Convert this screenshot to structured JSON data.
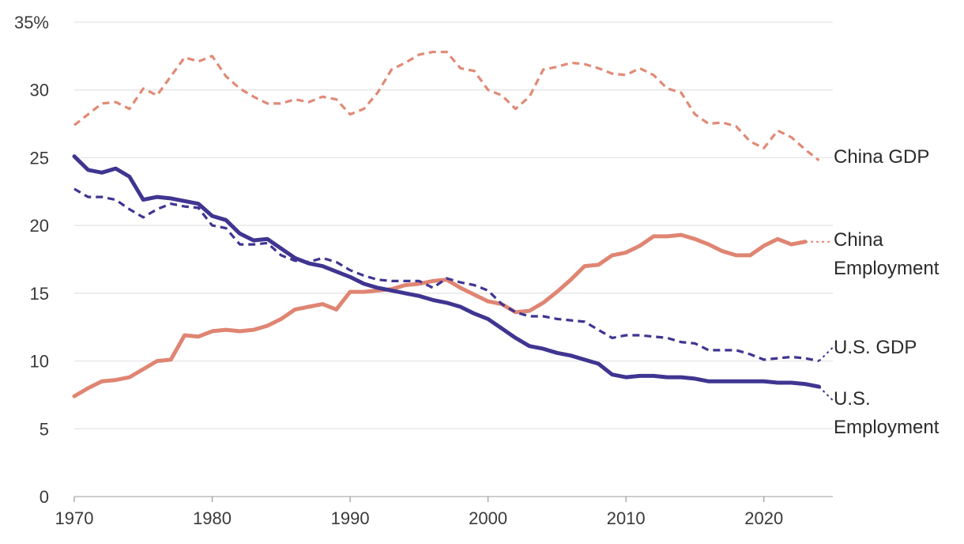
{
  "chart_data": {
    "type": "line",
    "title": "",
    "xlabel": "",
    "ylabel": "",
    "xlim": [
      1970,
      2025
    ],
    "ylim": [
      0,
      35
    ],
    "grid": true,
    "legend": "direct-labels-right",
    "y_ticks": [
      {
        "value": 0,
        "label": "0"
      },
      {
        "value": 5,
        "label": "5"
      },
      {
        "value": 10,
        "label": "10"
      },
      {
        "value": 15,
        "label": "15"
      },
      {
        "value": 20,
        "label": "20"
      },
      {
        "value": 25,
        "label": "25"
      },
      {
        "value": 30,
        "label": "30"
      },
      {
        "value": 35,
        "label": "35%"
      }
    ],
    "x_ticks": [
      {
        "value": 1970,
        "label": "1970"
      },
      {
        "value": 1980,
        "label": "1980"
      },
      {
        "value": 1990,
        "label": "1990"
      },
      {
        "value": 2000,
        "label": "2000"
      },
      {
        "value": 2010,
        "label": "2010"
      },
      {
        "value": 2020,
        "label": "2020"
      }
    ],
    "series": [
      {
        "key": "china-gdp",
        "name": "China GDP",
        "label_lines": [
          "China GDP"
        ],
        "color": "#e08a76",
        "style": "dashed",
        "points": [
          [
            1970,
            27.4
          ],
          [
            1971,
            28.2
          ],
          [
            1972,
            29.0
          ],
          [
            1973,
            29.1
          ],
          [
            1974,
            28.6
          ],
          [
            1975,
            30.1
          ],
          [
            1976,
            29.6
          ],
          [
            1977,
            31.0
          ],
          [
            1978,
            32.4
          ],
          [
            1979,
            32.1
          ],
          [
            1980,
            32.5
          ],
          [
            1981,
            31.0
          ],
          [
            1982,
            30.1
          ],
          [
            1983,
            29.5
          ],
          [
            1984,
            29.0
          ],
          [
            1985,
            29.0
          ],
          [
            1986,
            29.3
          ],
          [
            1987,
            29.1
          ],
          [
            1988,
            29.5
          ],
          [
            1989,
            29.3
          ],
          [
            1990,
            28.2
          ],
          [
            1991,
            28.6
          ],
          [
            1992,
            29.8
          ],
          [
            1993,
            31.5
          ],
          [
            1994,
            32.0
          ],
          [
            1995,
            32.6
          ],
          [
            1996,
            32.8
          ],
          [
            1997,
            32.8
          ],
          [
            1998,
            31.6
          ],
          [
            1999,
            31.4
          ],
          [
            2000,
            30.0
          ],
          [
            2001,
            29.6
          ],
          [
            2002,
            28.6
          ],
          [
            2003,
            29.5
          ],
          [
            2004,
            31.5
          ],
          [
            2005,
            31.7
          ],
          [
            2006,
            32.0
          ],
          [
            2007,
            31.9
          ],
          [
            2008,
            31.6
          ],
          [
            2009,
            31.2
          ],
          [
            2010,
            31.1
          ],
          [
            2011,
            31.6
          ],
          [
            2012,
            31.1
          ],
          [
            2013,
            30.1
          ],
          [
            2014,
            29.8
          ],
          [
            2015,
            28.2
          ],
          [
            2016,
            27.5
          ],
          [
            2017,
            27.6
          ],
          [
            2018,
            27.3
          ],
          [
            2019,
            26.2
          ],
          [
            2020,
            25.7
          ],
          [
            2021,
            27.0
          ],
          [
            2022,
            26.5
          ],
          [
            2023,
            25.6
          ],
          [
            2024,
            24.8
          ]
        ],
        "extension": []
      },
      {
        "key": "china-employment",
        "name": "China Employment",
        "label_lines": [
          "China",
          "Employment"
        ],
        "color": "#df8572",
        "style": "solid",
        "points": [
          [
            1970,
            7.4
          ],
          [
            1971,
            8.0
          ],
          [
            1972,
            8.5
          ],
          [
            1973,
            8.6
          ],
          [
            1974,
            8.8
          ],
          [
            1975,
            9.4
          ],
          [
            1976,
            10.0
          ],
          [
            1977,
            10.1
          ],
          [
            1978,
            11.9
          ],
          [
            1979,
            11.8
          ],
          [
            1980,
            12.2
          ],
          [
            1981,
            12.3
          ],
          [
            1982,
            12.2
          ],
          [
            1983,
            12.3
          ],
          [
            1984,
            12.6
          ],
          [
            1985,
            13.1
          ],
          [
            1986,
            13.8
          ],
          [
            1987,
            14.0
          ],
          [
            1988,
            14.2
          ],
          [
            1989,
            13.8
          ],
          [
            1990,
            15.1
          ],
          [
            1991,
            15.1
          ],
          [
            1992,
            15.2
          ],
          [
            1993,
            15.3
          ],
          [
            1994,
            15.6
          ],
          [
            1995,
            15.7
          ],
          [
            1996,
            15.9
          ],
          [
            1997,
            16.0
          ],
          [
            1998,
            15.4
          ],
          [
            1999,
            14.9
          ],
          [
            2000,
            14.4
          ],
          [
            2001,
            14.2
          ],
          [
            2002,
            13.6
          ],
          [
            2003,
            13.7
          ],
          [
            2004,
            14.3
          ],
          [
            2005,
            15.1
          ],
          [
            2006,
            16.0
          ],
          [
            2007,
            17.0
          ],
          [
            2008,
            17.1
          ],
          [
            2009,
            17.8
          ],
          [
            2010,
            18.0
          ],
          [
            2011,
            18.5
          ],
          [
            2012,
            19.2
          ],
          [
            2013,
            19.2
          ],
          [
            2014,
            19.3
          ],
          [
            2015,
            19.0
          ],
          [
            2016,
            18.6
          ],
          [
            2017,
            18.1
          ],
          [
            2018,
            17.8
          ],
          [
            2019,
            17.8
          ],
          [
            2020,
            18.5
          ],
          [
            2021,
            19.0
          ],
          [
            2022,
            18.6
          ],
          [
            2023,
            18.8
          ]
        ],
        "extension": [
          [
            2023,
            18.8
          ],
          [
            2025,
            18.8
          ]
        ]
      },
      {
        "key": "us-gdp",
        "name": "U.S. GDP",
        "label_lines": [
          "U.S. GDP"
        ],
        "color": "#3f3591",
        "style": "dashed",
        "points": [
          [
            1970,
            22.7
          ],
          [
            1971,
            22.1
          ],
          [
            1972,
            22.1
          ],
          [
            1973,
            21.9
          ],
          [
            1974,
            21.2
          ],
          [
            1975,
            20.6
          ],
          [
            1976,
            21.2
          ],
          [
            1977,
            21.6
          ],
          [
            1978,
            21.4
          ],
          [
            1979,
            21.3
          ],
          [
            1980,
            20.0
          ],
          [
            1981,
            19.8
          ],
          [
            1982,
            18.6
          ],
          [
            1983,
            18.6
          ],
          [
            1984,
            18.7
          ],
          [
            1985,
            17.8
          ],
          [
            1986,
            17.4
          ],
          [
            1987,
            17.3
          ],
          [
            1988,
            17.6
          ],
          [
            1989,
            17.3
          ],
          [
            1990,
            16.7
          ],
          [
            1991,
            16.3
          ],
          [
            1992,
            16.0
          ],
          [
            1993,
            15.9
          ],
          [
            1994,
            15.9
          ],
          [
            1995,
            15.9
          ],
          [
            1996,
            15.4
          ],
          [
            1997,
            16.1
          ],
          [
            1998,
            15.8
          ],
          [
            1999,
            15.6
          ],
          [
            2000,
            15.2
          ],
          [
            2001,
            14.2
          ],
          [
            2002,
            13.6
          ],
          [
            2003,
            13.3
          ],
          [
            2004,
            13.3
          ],
          [
            2005,
            13.1
          ],
          [
            2006,
            13.0
          ],
          [
            2007,
            12.9
          ],
          [
            2008,
            12.3
          ],
          [
            2009,
            11.7
          ],
          [
            2010,
            11.9
          ],
          [
            2011,
            11.9
          ],
          [
            2012,
            11.8
          ],
          [
            2013,
            11.7
          ],
          [
            2014,
            11.4
          ],
          [
            2015,
            11.3
          ],
          [
            2016,
            10.8
          ],
          [
            2017,
            10.8
          ],
          [
            2018,
            10.8
          ],
          [
            2019,
            10.5
          ],
          [
            2020,
            10.1
          ],
          [
            2021,
            10.2
          ],
          [
            2022,
            10.3
          ],
          [
            2023,
            10.2
          ],
          [
            2024,
            10.0
          ]
        ],
        "extension": [
          [
            2024,
            10.0
          ],
          [
            2025,
            11.0
          ]
        ]
      },
      {
        "key": "us-employment",
        "name": "U.S. Employment",
        "label_lines": [
          "U.S.",
          "Employment"
        ],
        "color": "#3f3591",
        "style": "solid",
        "points": [
          [
            1970,
            25.1
          ],
          [
            1971,
            24.1
          ],
          [
            1972,
            23.9
          ],
          [
            1973,
            24.2
          ],
          [
            1974,
            23.6
          ],
          [
            1975,
            21.9
          ],
          [
            1976,
            22.1
          ],
          [
            1977,
            22.0
          ],
          [
            1978,
            21.8
          ],
          [
            1979,
            21.6
          ],
          [
            1980,
            20.7
          ],
          [
            1981,
            20.4
          ],
          [
            1982,
            19.4
          ],
          [
            1983,
            18.9
          ],
          [
            1984,
            19.0
          ],
          [
            1985,
            18.3
          ],
          [
            1986,
            17.6
          ],
          [
            1987,
            17.2
          ],
          [
            1988,
            17.0
          ],
          [
            1989,
            16.6
          ],
          [
            1990,
            16.2
          ],
          [
            1991,
            15.7
          ],
          [
            1992,
            15.4
          ],
          [
            1993,
            15.2
          ],
          [
            1994,
            15.0
          ],
          [
            1995,
            14.8
          ],
          [
            1996,
            14.5
          ],
          [
            1997,
            14.3
          ],
          [
            1998,
            14.0
          ],
          [
            1999,
            13.5
          ],
          [
            2000,
            13.1
          ],
          [
            2001,
            12.4
          ],
          [
            2002,
            11.7
          ],
          [
            2003,
            11.1
          ],
          [
            2004,
            10.9
          ],
          [
            2005,
            10.6
          ],
          [
            2006,
            10.4
          ],
          [
            2007,
            10.1
          ],
          [
            2008,
            9.8
          ],
          [
            2009,
            9.0
          ],
          [
            2010,
            8.8
          ],
          [
            2011,
            8.9
          ],
          [
            2012,
            8.9
          ],
          [
            2013,
            8.8
          ],
          [
            2014,
            8.8
          ],
          [
            2015,
            8.7
          ],
          [
            2016,
            8.5
          ],
          [
            2017,
            8.5
          ],
          [
            2018,
            8.5
          ],
          [
            2019,
            8.5
          ],
          [
            2020,
            8.5
          ],
          [
            2021,
            8.4
          ],
          [
            2022,
            8.4
          ],
          [
            2023,
            8.3
          ],
          [
            2024,
            8.1
          ]
        ],
        "extension": [
          [
            2024,
            8.1
          ],
          [
            2025,
            7.1
          ]
        ]
      }
    ]
  }
}
